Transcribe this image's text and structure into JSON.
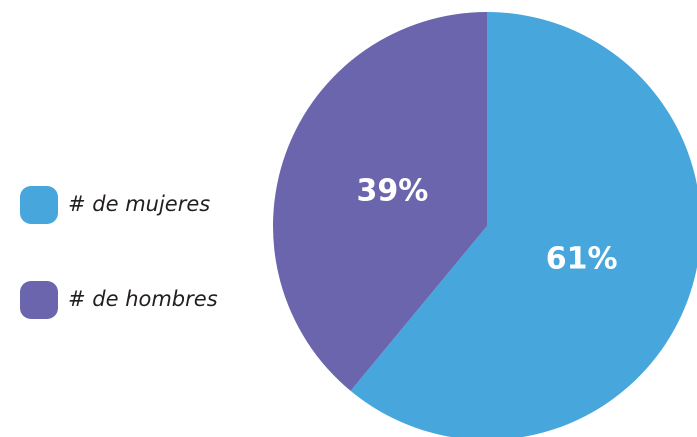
{
  "chart_data": {
    "type": "pie",
    "categories": [
      "# de mujeres",
      "# de hombres"
    ],
    "values": [
      61,
      39
    ],
    "value_labels": [
      "61%",
      "39%"
    ],
    "colors": [
      "#47a7dc",
      "#6a65ad"
    ]
  }
}
